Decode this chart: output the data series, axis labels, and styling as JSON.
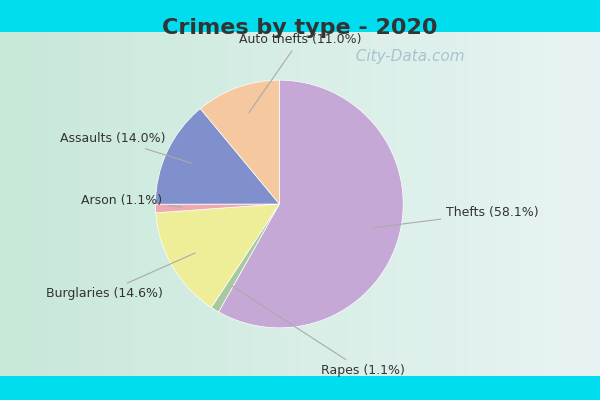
{
  "title": "Crimes by type - 2020",
  "title_fontsize": 16,
  "title_fontweight": "bold",
  "title_color": "#333333",
  "slices": [
    {
      "label": "Thefts",
      "pct": 58.1,
      "color": "#C5A8D5"
    },
    {
      "label": "Rapes",
      "pct": 1.1,
      "color": "#A8C8A0"
    },
    {
      "label": "Burglaries",
      "pct": 14.6,
      "color": "#EEEE99"
    },
    {
      "label": "Arson",
      "pct": 1.1,
      "color": "#F0A8B0"
    },
    {
      "label": "Assaults",
      "pct": 14.0,
      "color": "#8090CC"
    },
    {
      "label": "Auto thefts",
      "pct": 11.0,
      "color": "#F5C8A0"
    }
  ],
  "border_color": "#00DDEE",
  "inner_bg_left": "#C8E8D8",
  "inner_bg_right": "#E8F4F0",
  "label_fontsize": 9,
  "label_color": "#333333",
  "line_color": "#AAAAAA",
  "watermark_text": "  City-Data.com",
  "watermark_color": "#A0BCC8",
  "watermark_fontsize": 11,
  "border_thickness": 0.08
}
